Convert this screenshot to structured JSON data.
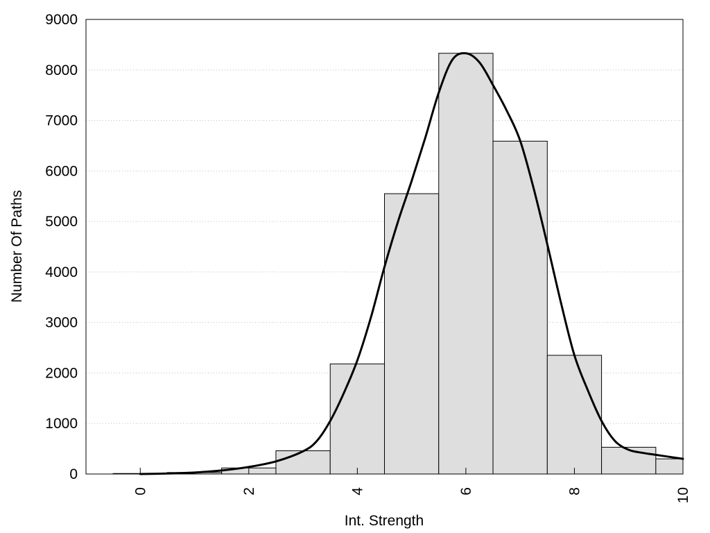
{
  "chart_data": {
    "type": "bar",
    "title": "",
    "xlabel": "Int. Strength",
    "ylabel": "Number Of Paths",
    "xlim": [
      -1,
      10
    ],
    "ylim": [
      0,
      9000
    ],
    "xticks": [
      0,
      2,
      4,
      6,
      8,
      10
    ],
    "yticks": [
      0,
      1000,
      2000,
      3000,
      4000,
      5000,
      6000,
      7000,
      8000,
      9000
    ],
    "grid": true,
    "bars": {
      "centers": [
        0,
        1,
        2,
        3,
        4,
        5,
        6,
        7,
        8,
        9,
        10
      ],
      "values": [
        10,
        30,
        120,
        460,
        2180,
        5550,
        8330,
        6590,
        2350,
        530,
        300
      ]
    },
    "density_curve": {
      "x": [
        0,
        0.5,
        1,
        1.5,
        2,
        2.5,
        3,
        3.25,
        3.5,
        3.75,
        4,
        4.25,
        4.5,
        4.75,
        5,
        5.25,
        5.5,
        5.75,
        6,
        6.25,
        6.5,
        6.75,
        7,
        7.25,
        7.5,
        7.75,
        8,
        8.25,
        8.5,
        8.75,
        9,
        9.25,
        9.5,
        10
      ],
      "y": [
        0,
        10,
        30,
        70,
        140,
        250,
        450,
        650,
        1050,
        1600,
        2250,
        3100,
        4100,
        5000,
        5800,
        6650,
        7550,
        8200,
        8330,
        8150,
        7700,
        7200,
        6600,
        5650,
        4550,
        3400,
        2350,
        1650,
        1050,
        650,
        480,
        420,
        380,
        300
      ]
    }
  }
}
